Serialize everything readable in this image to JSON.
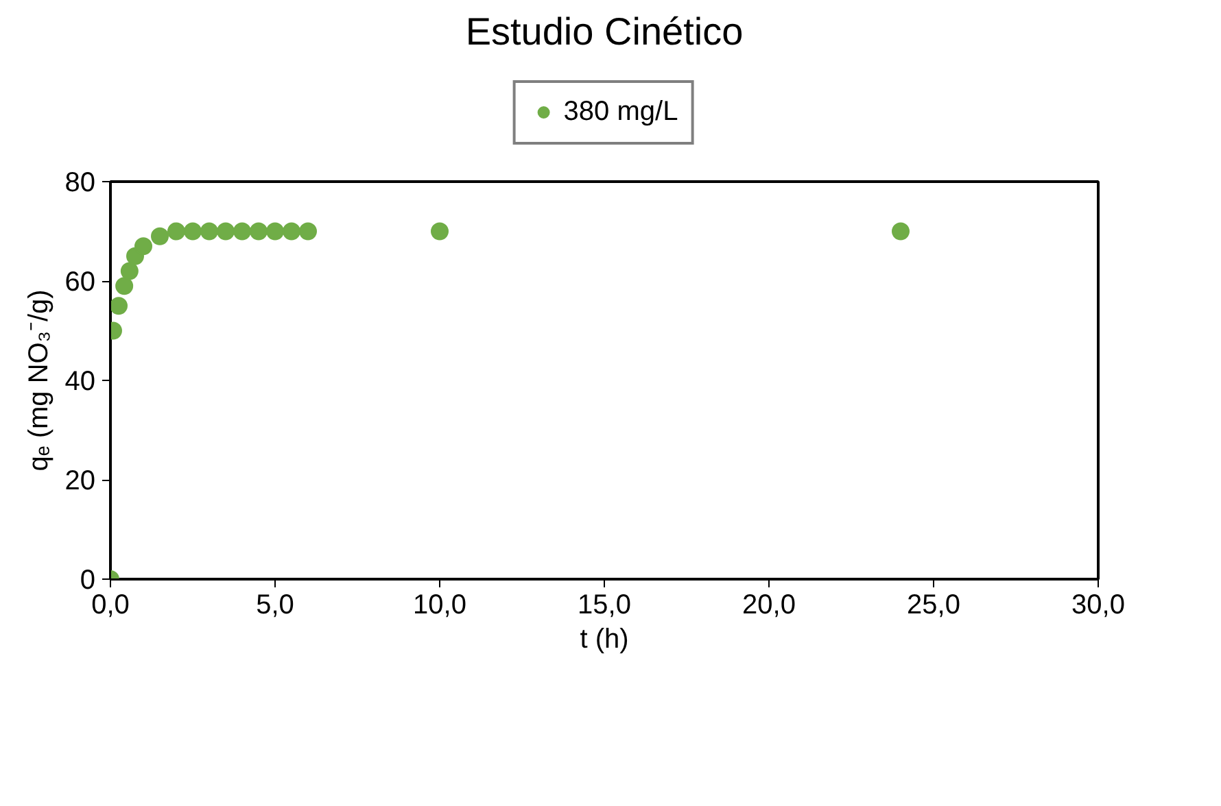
{
  "chart_data": {
    "type": "scatter",
    "title": "Estudio Cinético",
    "xlabel": "t (h)",
    "ylabel": "qₑ (mg NO₃⁻/g)",
    "series": [
      {
        "name": "380 mg/L",
        "color": "#70ad47",
        "x": [
          0,
          0.083,
          0.25,
          0.42,
          0.58,
          0.75,
          1,
          1.5,
          2,
          2.5,
          3,
          3.5,
          4,
          4.5,
          5,
          5.5,
          6,
          10,
          24
        ],
        "values": [
          0,
          50,
          55,
          59,
          62,
          65,
          67,
          69,
          70,
          70,
          70,
          70,
          70,
          70,
          70,
          70,
          70,
          70,
          70
        ]
      }
    ],
    "xlim": [
      0,
      30
    ],
    "xticks": [
      {
        "value": 0,
        "label": "0,0"
      },
      {
        "value": 5,
        "label": "5,0"
      },
      {
        "value": 10,
        "label": "10,0"
      },
      {
        "value": 15,
        "label": "15,0"
      },
      {
        "value": 20,
        "label": "20,0"
      },
      {
        "value": 25,
        "label": "25,0"
      },
      {
        "value": 30,
        "label": "30,0"
      }
    ],
    "ylim": [
      0,
      80
    ],
    "yticks": [
      0,
      20,
      40,
      60,
      80
    ],
    "grid": false,
    "legend": "top",
    "marker": "circle"
  }
}
